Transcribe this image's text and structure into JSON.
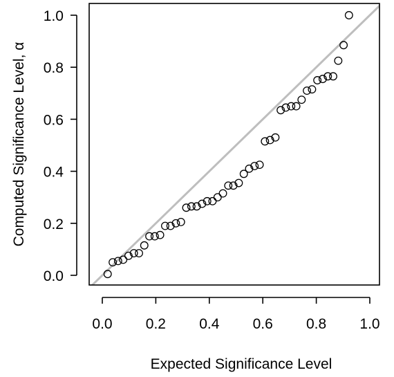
{
  "chart_data": {
    "type": "scatter",
    "xlabel": "Expected Significance Level",
    "ylabel": "Computed Significance Level, α",
    "xlim": [
      0.0,
      1.0
    ],
    "ylim": [
      0.0,
      1.0
    ],
    "x_ticks": [
      "0.0",
      "0.2",
      "0.4",
      "0.6",
      "0.8",
      "1.0"
    ],
    "y_ticks": [
      "0.0",
      "0.2",
      "0.4",
      "0.6",
      "0.8",
      "1.0"
    ],
    "grid": false,
    "reference_line": {
      "from": [
        0,
        0
      ],
      "to": [
        1,
        1
      ],
      "color": "#bebebe"
    },
    "marker": "open-circle",
    "colors": {
      "points": "#000000",
      "reference": "#bebebe",
      "frame": "#000000"
    },
    "series": [
      {
        "points": [
          [
            0.02,
            0.005
          ],
          [
            0.039,
            0.05
          ],
          [
            0.059,
            0.055
          ],
          [
            0.078,
            0.06
          ],
          [
            0.098,
            0.075
          ],
          [
            0.118,
            0.085
          ],
          [
            0.137,
            0.085
          ],
          [
            0.157,
            0.115
          ],
          [
            0.176,
            0.15
          ],
          [
            0.196,
            0.15
          ],
          [
            0.216,
            0.155
          ],
          [
            0.235,
            0.19
          ],
          [
            0.255,
            0.19
          ],
          [
            0.275,
            0.2
          ],
          [
            0.294,
            0.205
          ],
          [
            0.314,
            0.26
          ],
          [
            0.333,
            0.265
          ],
          [
            0.353,
            0.265
          ],
          [
            0.373,
            0.275
          ],
          [
            0.392,
            0.285
          ],
          [
            0.412,
            0.285
          ],
          [
            0.431,
            0.3
          ],
          [
            0.451,
            0.315
          ],
          [
            0.471,
            0.345
          ],
          [
            0.49,
            0.345
          ],
          [
            0.51,
            0.355
          ],
          [
            0.529,
            0.39
          ],
          [
            0.549,
            0.41
          ],
          [
            0.569,
            0.42
          ],
          [
            0.588,
            0.425
          ],
          [
            0.608,
            0.515
          ],
          [
            0.627,
            0.52
          ],
          [
            0.647,
            0.53
          ],
          [
            0.667,
            0.635
          ],
          [
            0.686,
            0.645
          ],
          [
            0.706,
            0.65
          ],
          [
            0.725,
            0.65
          ],
          [
            0.745,
            0.675
          ],
          [
            0.765,
            0.71
          ],
          [
            0.784,
            0.715
          ],
          [
            0.804,
            0.75
          ],
          [
            0.824,
            0.755
          ],
          [
            0.843,
            0.765
          ],
          [
            0.863,
            0.765
          ],
          [
            0.882,
            0.825
          ],
          [
            0.902,
            0.885
          ],
          [
            0.922,
            1.0
          ]
        ]
      }
    ]
  }
}
